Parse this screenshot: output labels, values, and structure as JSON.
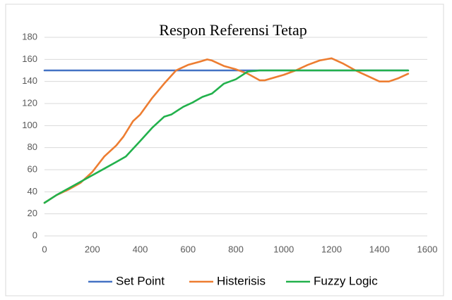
{
  "chart_data": {
    "type": "line",
    "title": "Respon Referensi Tetap",
    "series": [
      {
        "name": "Set Point",
        "color": "#4472c4",
        "x": [
          0,
          1520
        ],
        "values": [
          150,
          150
        ]
      },
      {
        "name": "Histerisis",
        "color": "#ed7d31",
        "x": [
          0,
          50,
          100,
          150,
          200,
          250,
          300,
          330,
          370,
          400,
          450,
          500,
          550,
          600,
          650,
          680,
          700,
          750,
          800,
          850,
          900,
          920,
          1000,
          1050,
          1100,
          1150,
          1200,
          1250,
          1300,
          1350,
          1400,
          1440,
          1480,
          1520
        ],
        "values": [
          30,
          37,
          42,
          48,
          58,
          72,
          82,
          90,
          104,
          110,
          125,
          138,
          150,
          155,
          158,
          160,
          159,
          154,
          151,
          147,
          141,
          141,
          146,
          150,
          155,
          159,
          161,
          156,
          150,
          145,
          140,
          140,
          143,
          147
        ]
      },
      {
        "name": "Fuzzy Logic",
        "color": "#22b14c",
        "x": [
          0,
          50,
          100,
          150,
          200,
          250,
          300,
          340,
          400,
          450,
          500,
          530,
          580,
          620,
          660,
          700,
          750,
          800,
          850,
          900,
          950,
          1000,
          1200,
          1400,
          1520
        ],
        "values": [
          30,
          37,
          43,
          49,
          55,
          61,
          67,
          72,
          86,
          98,
          108,
          110,
          117,
          121,
          126,
          129,
          138,
          142,
          149,
          150,
          150,
          150,
          150,
          150,
          150
        ]
      }
    ],
    "xlim": [
      0,
      1600
    ],
    "xticks": [
      0,
      200,
      400,
      600,
      800,
      1000,
      1200,
      1400,
      1600
    ],
    "ylim": [
      0,
      180
    ],
    "yticks": [
      0,
      20,
      40,
      60,
      80,
      100,
      120,
      140,
      160,
      180
    ],
    "grid": true,
    "legend": "bottom"
  }
}
